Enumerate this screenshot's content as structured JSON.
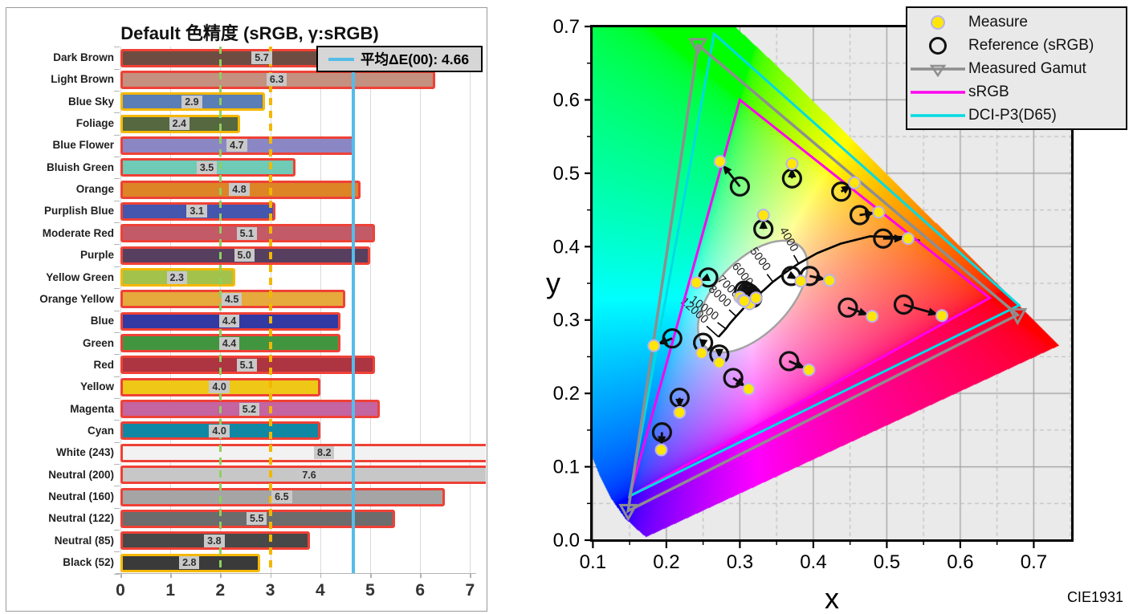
{
  "chart_data": [
    {
      "type": "bar",
      "orientation": "horizontal",
      "title": "Default 色精度 (sRGB, γ:sRGB)",
      "legend_label": "平均ΔE(00): 4.66",
      "average": 4.66,
      "xlim": [
        0,
        7
      ],
      "x_ticks": [
        "0",
        "1",
        "2",
        "3",
        "4",
        "5",
        "6",
        "7"
      ],
      "threshold_lines": [
        {
          "value": 2,
          "style": "dashed",
          "color": "#8ed05e"
        },
        {
          "value": 3,
          "style": "dashed",
          "color": "#f3b700"
        }
      ],
      "colors": {
        "red_border": "#ef4136",
        "gold_border": "#f5b800",
        "avg_line": "#55bce8",
        "grid": "#d9d9d9",
        "value_box_bg": "#c9c9c9"
      },
      "bars": [
        {
          "label": "Dark Brown",
          "value": 5.7,
          "display": "5.7",
          "fill": "#6f4c41",
          "border": "red"
        },
        {
          "label": "Light Brown",
          "value": 6.3,
          "display": "6.3",
          "fill": "#c4907f",
          "border": "red"
        },
        {
          "label": "Blue Sky",
          "value": 2.9,
          "display": "2.9",
          "fill": "#5a7eb5",
          "border": "gold"
        },
        {
          "label": "Foliage",
          "value": 2.4,
          "display": "2.4",
          "fill": "#55683f",
          "border": "gold"
        },
        {
          "label": "Blue Flower",
          "value": 4.7,
          "display": "4.7",
          "fill": "#8b87c4",
          "border": "red"
        },
        {
          "label": "Bluish Green",
          "value": 3.5,
          "display": "3.5",
          "fill": "#6fcbb5",
          "border": "red"
        },
        {
          "label": "Orange",
          "value": 4.8,
          "display": "4.8",
          "fill": "#dd8427",
          "border": "red"
        },
        {
          "label": "Purplish Blue",
          "value": 3.1,
          "display": "3.1",
          "fill": "#4456ae",
          "border": "red"
        },
        {
          "label": "Moderate Red",
          "value": 5.1,
          "display": "5.1",
          "fill": "#c25a67",
          "border": "red"
        },
        {
          "label": "Purple",
          "value": 5.0,
          "display": "5.0",
          "fill": "#573f60",
          "border": "red"
        },
        {
          "label": "Yellow Green",
          "value": 2.3,
          "display": "2.3",
          "fill": "#a3c24c",
          "border": "gold"
        },
        {
          "label": "Orange Yellow",
          "value": 4.5,
          "display": "4.5",
          "fill": "#e6a93b",
          "border": "red"
        },
        {
          "label": "Blue",
          "value": 4.4,
          "display": "4.4",
          "fill": "#3239a2",
          "border": "red"
        },
        {
          "label": "Green",
          "value": 4.4,
          "display": "4.4",
          "fill": "#42953f",
          "border": "red"
        },
        {
          "label": "Red",
          "value": 5.1,
          "display": "5.1",
          "fill": "#ad3441",
          "border": "red"
        },
        {
          "label": "Yellow",
          "value": 4.0,
          "display": "4.0",
          "fill": "#eec717",
          "border": "red"
        },
        {
          "label": "Magenta",
          "value": 5.2,
          "display": "5.2",
          "fill": "#c464a0",
          "border": "red"
        },
        {
          "label": "Cyan",
          "value": 4.0,
          "display": "4.0",
          "fill": "#1188a3",
          "border": "red"
        },
        {
          "label": "White (243)",
          "value": 8.2,
          "display": "8.2",
          "fill": "#f2f2f2",
          "border": "red"
        },
        {
          "label": "Neutral (200)",
          "value": 7.6,
          "display": "7.6",
          "fill": "#c7c7c7",
          "border": "red"
        },
        {
          "label": "Neutral (160)",
          "value": 6.5,
          "display": "6.5",
          "fill": "#a5a5a5",
          "border": "red"
        },
        {
          "label": "Neutral (122)",
          "value": 5.5,
          "display": "5.5",
          "fill": "#6c6c6c",
          "border": "red"
        },
        {
          "label": "Neutral (85)",
          "value": 3.8,
          "display": "3.8",
          "fill": "#484848",
          "border": "red"
        },
        {
          "label": "Black (52)",
          "value": 2.8,
          "display": "2.8",
          "fill": "#3a3a3a",
          "border": "gold"
        }
      ]
    },
    {
      "type": "scatter",
      "name": "CIE1931 xy chromaticity",
      "xlabel": "x",
      "ylabel": "y",
      "corner_label": "CIE1931",
      "xlim": [
        0.0985,
        0.752
      ],
      "ylim": [
        0.0,
        0.7
      ],
      "x_ticks": [
        {
          "v": 0.1,
          "t": "0.1"
        },
        {
          "v": 0.2,
          "t": "0.2"
        },
        {
          "v": 0.3,
          "t": "0.3"
        },
        {
          "v": 0.4,
          "t": "0.4"
        },
        {
          "v": 0.5,
          "t": "0.5"
        },
        {
          "v": 0.6,
          "t": "0.6"
        },
        {
          "v": 0.7,
          "t": "0.7"
        }
      ],
      "y_ticks": [
        {
          "v": 0.0,
          "t": "0.0"
        },
        {
          "v": 0.1,
          "t": "0.1"
        },
        {
          "v": 0.2,
          "t": "0.2"
        },
        {
          "v": 0.3,
          "t": "0.3"
        },
        {
          "v": 0.4,
          "t": "0.4"
        },
        {
          "v": 0.5,
          "t": "0.5"
        },
        {
          "v": 0.6,
          "t": "0.6"
        },
        {
          "v": 0.7,
          "t": "0.7"
        }
      ],
      "legend": [
        {
          "marker": "measure-dot",
          "label": "Measure"
        },
        {
          "marker": "ref-circle",
          "label": "Reference (sRGB)"
        },
        {
          "marker": "gamut-line",
          "label": "Measured Gamut"
        },
        {
          "marker": "srgb-line",
          "label": "sRGB"
        },
        {
          "marker": "dci-line",
          "label": "DCI-P3(D65)"
        }
      ],
      "colors": {
        "srgb": "#ff00f0",
        "dci_p3": "#00dbe3",
        "measured": "#8e8e8e",
        "measure_fill": "#ffe60a",
        "measure_ring": "#b9b3ea",
        "reference": "#111111",
        "arrow": "#0a0a0a",
        "bg": "#eaeaea",
        "grid_major": "#9c9c9c",
        "grid_minor": "#b6b6b6",
        "frame": "#000000",
        "ellipse_stroke": "#a3a3a3"
      },
      "gamut_srgb": [
        [
          0.64,
          0.33
        ],
        [
          0.3,
          0.6
        ],
        [
          0.15,
          0.06
        ]
      ],
      "gamut_dci_p3": [
        [
          0.68,
          0.32
        ],
        [
          0.265,
          0.69
        ],
        [
          0.15,
          0.06
        ]
      ],
      "gamut_measured": [
        [
          0.678,
          0.307
        ],
        [
          0.243,
          0.675
        ],
        [
          0.148,
          0.04
        ]
      ],
      "points": [
        {
          "ref": [
            0.3,
            0.482
          ],
          "meas": [
            0.273,
            0.516
          ]
        },
        {
          "ref": [
            0.371,
            0.493
          ],
          "meas": [
            0.371,
            0.513
          ]
        },
        {
          "ref": [
            0.438,
            0.475
          ],
          "meas": [
            0.456,
            0.487
          ]
        },
        {
          "ref": [
            0.463,
            0.443
          ],
          "meas": [
            0.489,
            0.447
          ]
        },
        {
          "ref": [
            0.495,
            0.411
          ],
          "meas": [
            0.529,
            0.411
          ]
        },
        {
          "ref": [
            0.332,
            0.424
          ],
          "meas": [
            0.332,
            0.443
          ]
        },
        {
          "ref": [
            0.257,
            0.358
          ],
          "meas": [
            0.241,
            0.351
          ]
        },
        {
          "ref": [
            0.37,
            0.36
          ],
          "meas": [
            0.383,
            0.353
          ]
        },
        {
          "ref": [
            0.395,
            0.36
          ],
          "meas": [
            0.422,
            0.354
          ]
        },
        {
          "ref": [
            0.447,
            0.317
          ],
          "meas": [
            0.48,
            0.305
          ]
        },
        {
          "ref": [
            0.523,
            0.321
          ],
          "meas": [
            0.575,
            0.306
          ]
        },
        {
          "ref": [
            0.208,
            0.275
          ],
          "meas": [
            0.183,
            0.265
          ]
        },
        {
          "ref": [
            0.25,
            0.269
          ],
          "meas": [
            0.248,
            0.255
          ]
        },
        {
          "ref": [
            0.272,
            0.253
          ],
          "meas": [
            0.272,
            0.242
          ]
        },
        {
          "ref": [
            0.291,
            0.221
          ],
          "meas": [
            0.312,
            0.206
          ]
        },
        {
          "ref": [
            0.367,
            0.244
          ],
          "meas": [
            0.394,
            0.232
          ]
        },
        {
          "ref": [
            0.218,
            0.194
          ],
          "meas": [
            0.218,
            0.174
          ]
        },
        {
          "ref": [
            0.194,
            0.147
          ],
          "meas": [
            0.193,
            0.123
          ]
        },
        {
          "ref": [
            0.306,
            0.34
          ],
          "meas": [
            0.3,
            0.331
          ]
        },
        {
          "ref": [
            0.31,
            0.338
          ],
          "meas": [
            0.304,
            0.327
          ]
        },
        {
          "ref": [
            0.313,
            0.336
          ],
          "meas": [
            0.309,
            0.324
          ]
        },
        {
          "ref": [
            0.316,
            0.333
          ],
          "meas": [
            0.313,
            0.322
          ]
        },
        {
          "ref": [
            0.312,
            0.331
          ],
          "meas": [
            0.306,
            0.326
          ]
        },
        {
          "ref": [
            0.317,
            0.33
          ],
          "meas": [
            0.322,
            0.33
          ]
        }
      ],
      "planckian_locus": [
        [
          0.545,
          0.408
        ],
        [
          0.527,
          0.413
        ],
        [
          0.477,
          0.414
        ],
        [
          0.437,
          0.404
        ],
        [
          0.405,
          0.391
        ],
        [
          0.38,
          0.377
        ],
        [
          0.361,
          0.364
        ],
        [
          0.345,
          0.352
        ],
        [
          0.333,
          0.341
        ],
        [
          0.322,
          0.332
        ],
        [
          0.313,
          0.324
        ],
        [
          0.306,
          0.317
        ],
        [
          0.295,
          0.305
        ],
        [
          0.287,
          0.296
        ],
        [
          0.281,
          0.288
        ],
        [
          0.271,
          0.277
        ]
      ],
      "temp_labels": [
        {
          "label": "4000",
          "x": 0.38,
          "y": 0.377,
          "rot": 60,
          "len": 12
        },
        {
          "label": "5000",
          "x": 0.345,
          "y": 0.352,
          "rot": 53,
          "len": 12
        },
        {
          "label": "6000",
          "x": 0.322,
          "y": 0.332,
          "rot": 51,
          "len": 12
        },
        {
          "label": "7000",
          "x": 0.306,
          "y": 0.317,
          "rot": 45,
          "len": 12
        },
        {
          "label": "8000",
          "x": 0.295,
          "y": 0.305,
          "rot": 43,
          "len": 12
        },
        {
          "label": "10000",
          "x": 0.281,
          "y": 0.288,
          "rot": 37,
          "len": 13
        },
        {
          "label": "12000",
          "x": 0.271,
          "y": 0.277,
          "rot": 42,
          "len": 20
        }
      ],
      "ellipse": {
        "cx": 0.3175,
        "cy": 0.332,
        "rx": 0.094,
        "ry": 0.05,
        "rotation_deg": 46
      },
      "spectral_locus": [
        [
          0.1741,
          0.005
        ],
        [
          0.1738,
          0.0049
        ],
        [
          0.1733,
          0.0048
        ],
        [
          0.1726,
          0.0048
        ],
        [
          0.1714,
          0.0051
        ],
        [
          0.1689,
          0.0069
        ],
        [
          0.1644,
          0.0109
        ],
        [
          0.1566,
          0.0177
        ],
        [
          0.144,
          0.0297
        ],
        [
          0.1241,
          0.0578
        ],
        [
          0.1096,
          0.0868
        ],
        [
          0.0913,
          0.1327
        ],
        [
          0.0687,
          0.2007
        ],
        [
          0.0454,
          0.295
        ],
        [
          0.0235,
          0.4127
        ],
        [
          0.0082,
          0.5384
        ],
        [
          0.0039,
          0.6548
        ],
        [
          0.0139,
          0.7502
        ],
        [
          0.0389,
          0.812
        ],
        [
          0.0743,
          0.8338
        ],
        [
          0.1142,
          0.8262
        ],
        [
          0.1547,
          0.8059
        ],
        [
          0.1929,
          0.7816
        ],
        [
          0.2296,
          0.7543
        ],
        [
          0.2658,
          0.7243
        ],
        [
          0.3016,
          0.6923
        ],
        [
          0.3373,
          0.6589
        ],
        [
          0.3731,
          0.6245
        ],
        [
          0.4087,
          0.5896
        ],
        [
          0.4441,
          0.5547
        ],
        [
          0.4788,
          0.5202
        ],
        [
          0.5125,
          0.4866
        ],
        [
          0.5448,
          0.4544
        ],
        [
          0.5752,
          0.4242
        ],
        [
          0.6029,
          0.3965
        ],
        [
          0.627,
          0.3725
        ],
        [
          0.6658,
          0.334
        ],
        [
          0.6915,
          0.3083
        ],
        [
          0.7079,
          0.292
        ],
        [
          0.719,
          0.2809
        ],
        [
          0.726,
          0.274
        ],
        [
          0.7334,
          0.2666
        ],
        [
          0.7347,
          0.2653
        ]
      ]
    }
  ]
}
